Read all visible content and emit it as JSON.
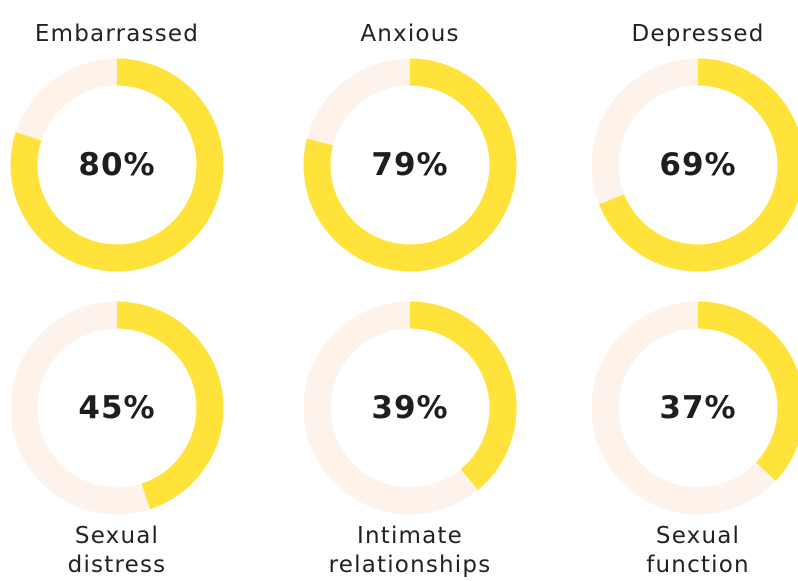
{
  "chart_data": [
    {
      "type": "donut",
      "title": "Embarrassed",
      "values": [
        80
      ],
      "value_labels": [
        "80%"
      ],
      "ylim": [
        0,
        100
      ],
      "color": "#ffe33b",
      "track_color": "#fdf3ea"
    },
    {
      "type": "donut",
      "title": "Anxious",
      "values": [
        79
      ],
      "value_labels": [
        "79%"
      ],
      "ylim": [
        0,
        100
      ],
      "color": "#ffe33b",
      "track_color": "#fdf3ea"
    },
    {
      "type": "donut",
      "title": "Depressed",
      "values": [
        69
      ],
      "value_labels": [
        "69%"
      ],
      "ylim": [
        0,
        100
      ],
      "color": "#ffe33b",
      "track_color": "#fdf3ea"
    },
    {
      "type": "donut",
      "title": "Sexual\ndistress",
      "values": [
        45
      ],
      "value_labels": [
        "45%"
      ],
      "ylim": [
        0,
        100
      ],
      "color": "#ffe33b",
      "track_color": "#fdf3ea"
    },
    {
      "type": "donut",
      "title": "Intimate\nrelationships",
      "values": [
        39
      ],
      "value_labels": [
        "39%"
      ],
      "ylim": [
        0,
        100
      ],
      "color": "#ffe33b",
      "track_color": "#fdf3ea"
    },
    {
      "type": "donut",
      "title": "Sexual\nfunction",
      "values": [
        37
      ],
      "value_labels": [
        "37%"
      ],
      "ylim": [
        0,
        100
      ],
      "color": "#ffe33b",
      "track_color": "#fdf3ea"
    }
  ]
}
